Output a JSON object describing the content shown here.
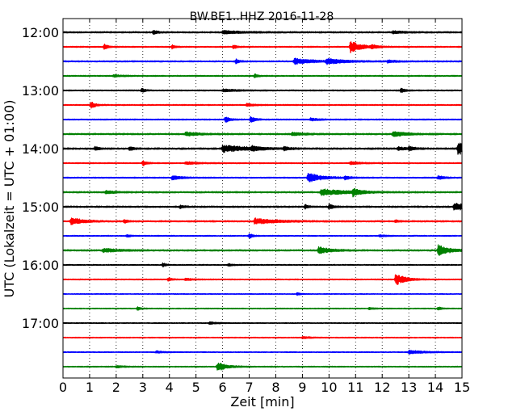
{
  "chart_data": {
    "type": "line",
    "title": "BW.BE1..HHZ 2016-11-28",
    "xlabel": "Zeit  [min]",
    "ylabel": "UTC (Lokalzeit = UTC + 01:00)",
    "xlim": [
      0,
      15
    ],
    "x_ticks": [
      "0",
      "1",
      "2",
      "3",
      "4",
      "5",
      "6",
      "7",
      "8",
      "9",
      "10",
      "11",
      "12",
      "13",
      "14",
      "15"
    ],
    "y_ticks": [
      "12:00",
      "13:00",
      "14:00",
      "15:00",
      "16:00",
      "17:00"
    ],
    "grid": "vertical dotted",
    "trace_colors": [
      "#000000",
      "#ff0000",
      "#0000ff",
      "#008000"
    ],
    "traces": [
      {
        "start": "12:00",
        "noise": 0.55,
        "events": [
          [
            3.4,
            2.2,
            0.15
          ],
          [
            6.0,
            1.6,
            0.8
          ],
          [
            12.4,
            1.4,
            0.4
          ]
        ]
      },
      {
        "start": "12:15",
        "noise": 0.45,
        "events": [
          [
            1.55,
            3.5,
            0.12
          ],
          [
            4.1,
            2.0,
            0.12
          ],
          [
            6.4,
            2.2,
            0.12
          ],
          [
            10.8,
            6.5,
            0.4
          ],
          [
            11.6,
            1.6,
            0.2
          ]
        ]
      },
      {
        "start": "12:30",
        "noise": 0.5,
        "events": [
          [
            6.5,
            2.6,
            0.12
          ],
          [
            8.7,
            3.4,
            0.6
          ],
          [
            9.9,
            3.0,
            0.6
          ],
          [
            12.2,
            1.5,
            0.3
          ]
        ]
      },
      {
        "start": "12:45",
        "noise": 0.45,
        "events": [
          [
            7.2,
            2.2,
            0.12
          ],
          [
            1.9,
            1.2,
            0.3
          ]
        ]
      },
      {
        "start": "13:00",
        "noise": 0.45,
        "events": [
          [
            2.95,
            2.6,
            0.12
          ],
          [
            12.7,
            2.6,
            0.15
          ],
          [
            6.0,
            1.4,
            0.5
          ]
        ]
      },
      {
        "start": "13:15",
        "noise": 0.45,
        "events": [
          [
            1.05,
            4.0,
            0.15
          ],
          [
            6.9,
            1.4,
            0.3
          ]
        ]
      },
      {
        "start": "13:30",
        "noise": 0.45,
        "events": [
          [
            6.1,
            3.5,
            0.15
          ],
          [
            7.05,
            3.5,
            0.15
          ],
          [
            9.3,
            1.5,
            0.3
          ]
        ]
      },
      {
        "start": "13:45",
        "noise": 0.55,
        "events": [
          [
            4.6,
            2.2,
            0.5
          ],
          [
            8.6,
            1.6,
            0.5
          ],
          [
            12.4,
            2.8,
            0.5
          ]
        ]
      },
      {
        "start": "14:00",
        "noise": 0.6,
        "events": [
          [
            1.2,
            2.4,
            0.12
          ],
          [
            2.5,
            2.6,
            0.15
          ],
          [
            6.0,
            4.2,
            0.8
          ],
          [
            7.1,
            2.4,
            0.25
          ],
          [
            8.3,
            2.0,
            0.2
          ],
          [
            12.6,
            2.2,
            0.25
          ],
          [
            13.0,
            2.0,
            0.2
          ],
          [
            14.85,
            7.5,
            0.35
          ]
        ]
      },
      {
        "start": "14:15",
        "noise": 0.45,
        "events": [
          [
            3.0,
            3.0,
            0.12
          ],
          [
            4.6,
            1.4,
            0.4
          ],
          [
            10.8,
            1.4,
            0.4
          ]
        ]
      },
      {
        "start": "14:30",
        "noise": 0.45,
        "events": [
          [
            4.1,
            2.5,
            0.3
          ],
          [
            9.2,
            5.2,
            0.5
          ],
          [
            10.6,
            2.2,
            0.15
          ],
          [
            14.1,
            2.2,
            0.2
          ]
        ]
      },
      {
        "start": "14:45",
        "noise": 0.55,
        "events": [
          [
            1.6,
            1.5,
            0.4
          ],
          [
            9.7,
            3.6,
            0.9
          ],
          [
            10.9,
            4.2,
            0.25
          ]
        ]
      },
      {
        "start": "15:00",
        "noise": 0.55,
        "events": [
          [
            4.4,
            1.6,
            0.15
          ],
          [
            9.1,
            2.4,
            0.12
          ],
          [
            10.0,
            3.0,
            0.15
          ],
          [
            14.7,
            4.5,
            0.6
          ]
        ]
      },
      {
        "start": "15:15",
        "noise": 0.55,
        "events": [
          [
            0.3,
            4.2,
            0.4
          ],
          [
            2.3,
            2.0,
            0.12
          ],
          [
            7.2,
            3.2,
            0.8
          ],
          [
            12.5,
            1.6,
            0.12
          ]
        ]
      },
      {
        "start": "15:30",
        "noise": 0.4,
        "events": [
          [
            2.4,
            1.8,
            0.12
          ],
          [
            7.0,
            3.0,
            0.12
          ],
          [
            11.9,
            1.2,
            0.2
          ]
        ]
      },
      {
        "start": "15:45",
        "noise": 0.55,
        "events": [
          [
            1.5,
            2.0,
            0.6
          ],
          [
            9.6,
            4.2,
            0.4
          ],
          [
            14.1,
            6.0,
            0.4
          ]
        ]
      },
      {
        "start": "16:00",
        "noise": 0.4,
        "events": [
          [
            3.75,
            2.2,
            0.12
          ],
          [
            6.2,
            1.2,
            0.2
          ]
        ]
      },
      {
        "start": "16:15",
        "noise": 0.4,
        "events": [
          [
            3.95,
            2.4,
            0.12
          ],
          [
            12.5,
            6.5,
            0.35
          ],
          [
            4.6,
            1.2,
            0.3
          ]
        ]
      },
      {
        "start": "16:30",
        "noise": 0.3,
        "events": [
          [
            8.8,
            1.6,
            0.12
          ]
        ]
      },
      {
        "start": "16:45",
        "noise": 0.35,
        "events": [
          [
            2.8,
            2.0,
            0.12
          ],
          [
            14.1,
            2.0,
            0.12
          ],
          [
            11.5,
            1.2,
            0.2
          ]
        ]
      },
      {
        "start": "17:00",
        "noise": 0.35,
        "events": [
          [
            5.5,
            1.3,
            0.3
          ]
        ]
      },
      {
        "start": "17:15",
        "noise": 0.35,
        "events": [
          [
            9.0,
            1.2,
            0.3
          ]
        ]
      },
      {
        "start": "17:30",
        "noise": 0.35,
        "events": [
          [
            13.0,
            2.0,
            0.6
          ],
          [
            3.5,
            1.2,
            0.3
          ]
        ]
      },
      {
        "start": "17:45",
        "noise": 0.4,
        "events": [
          [
            5.8,
            5.0,
            0.35
          ],
          [
            2.0,
            1.2,
            0.3
          ]
        ]
      }
    ]
  }
}
